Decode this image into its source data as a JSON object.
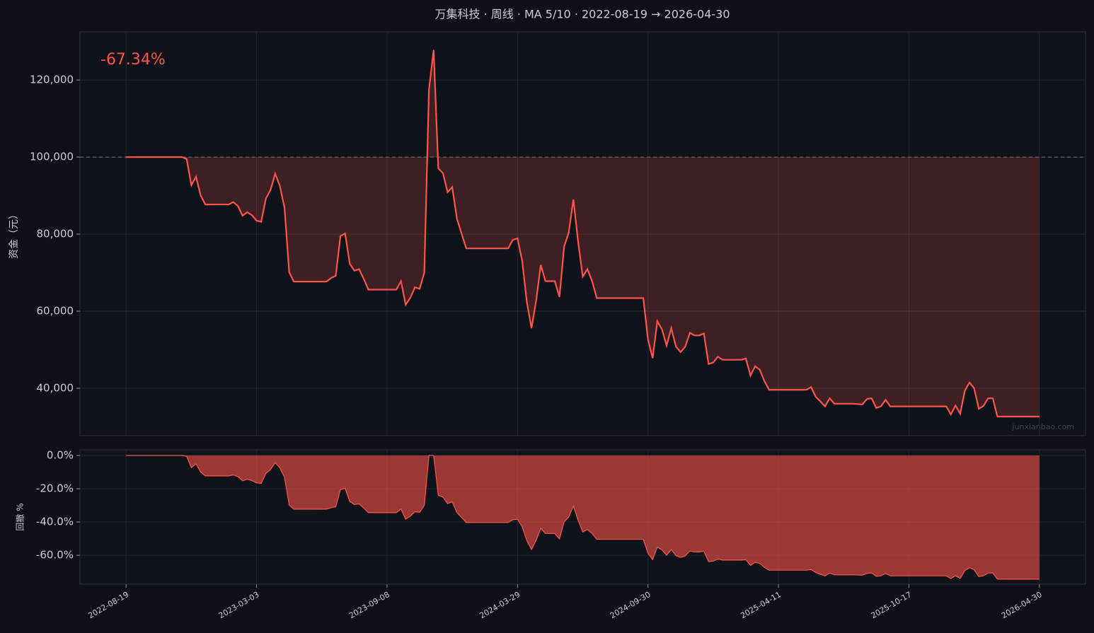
{
  "chart_data": [
    {
      "type": "line",
      "title": "万集科技 · 周线 · MA 5/10 · 2022-08-19 → 2026-04-30",
      "ylabel": "资金（元）",
      "annotation": "-67.34%",
      "watermark": "junxianbao.com",
      "color": "#ff5549",
      "baseline": 100000,
      "grid": true,
      "xlim": [
        -9.9,
        205.9
      ],
      "ylim": [
        27700,
        132500
      ],
      "yticks": [
        {
          "value": 40000,
          "label": "40,000"
        },
        {
          "value": 60000,
          "label": "60,000"
        },
        {
          "value": 80000,
          "label": "80,000"
        },
        {
          "value": 100000,
          "label": "100,000"
        },
        {
          "value": 120000,
          "label": "120,000"
        }
      ],
      "x": [
        0,
        12,
        13,
        14,
        15,
        16,
        17,
        22,
        23,
        24,
        25,
        26,
        27,
        28,
        29,
        30,
        31,
        32,
        33,
        34,
        35,
        36,
        43,
        44,
        45,
        46,
        47,
        48,
        49,
        50,
        51,
        52,
        58,
        59,
        60,
        61,
        62,
        63,
        64,
        65,
        66,
        67,
        68,
        69,
        70,
        71,
        73,
        82,
        83,
        84,
        85,
        86,
        87,
        88,
        89,
        90,
        92,
        93,
        94,
        95,
        96,
        97,
        98,
        99,
        100,
        101,
        111,
        112,
        113,
        114,
        115,
        116,
        117,
        118,
        119,
        120,
        121,
        122,
        123,
        124,
        125,
        126,
        127,
        128,
        132,
        133,
        134,
        135,
        136,
        137,
        138,
        146,
        147,
        148,
        149,
        150,
        151,
        152,
        156,
        158,
        159,
        160,
        161,
        162,
        163,
        164,
        176,
        177,
        178,
        179,
        180,
        181,
        182,
        183,
        184,
        185,
        186,
        187,
        196
      ],
      "values": [
        100000,
        100000,
        99500,
        92700,
        94900,
        90100,
        87700,
        87700,
        88300,
        87300,
        84800,
        85700,
        84900,
        83500,
        83200,
        89200,
        91500,
        95700,
        92500,
        86800,
        70100,
        67700,
        67700,
        68600,
        69200,
        79500,
        80200,
        72300,
        70500,
        70900,
        68400,
        65600,
        65600,
        67800,
        61700,
        63500,
        66200,
        65800,
        70000,
        117500,
        127800,
        97100,
        95800,
        90900,
        92200,
        84000,
        76300,
        76300,
        78500,
        78900,
        73100,
        62400,
        55600,
        62800,
        72000,
        67800,
        67800,
        63700,
        76800,
        80400,
        89000,
        78100,
        69000,
        70900,
        67800,
        63400,
        63400,
        52600,
        47800,
        57400,
        55300,
        51100,
        55600,
        50800,
        49400,
        50800,
        54400,
        53700,
        53700,
        54200,
        46300,
        46700,
        48200,
        47400,
        47400,
        47700,
        43300,
        45700,
        44800,
        41800,
        39600,
        39600,
        40300,
        37800,
        36600,
        35300,
        37400,
        36000,
        36000,
        35800,
        37200,
        37400,
        34900,
        35300,
        37000,
        35300,
        35300,
        33200,
        35500,
        33400,
        39400,
        41500,
        40000,
        34700,
        35400,
        37400,
        37400,
        32660,
        32660
      ]
    },
    {
      "type": "area",
      "ylabel": "回撤 %",
      "color": "#ff5549",
      "grid": true,
      "xlim": [
        -9.9,
        205.9
      ],
      "ylim": [
        -77.4,
        3.4
      ],
      "yticks": [
        {
          "value": -60,
          "label": "-60.0%"
        },
        {
          "value": -40,
          "label": "-40.0%"
        },
        {
          "value": -20,
          "label": "-20.0%"
        },
        {
          "value": 0,
          "label": "0.0%"
        }
      ],
      "xticks": [
        {
          "value": 0,
          "label": "2022-08-19"
        },
        {
          "value": 28,
          "label": "2023-03-03"
        },
        {
          "value": 56,
          "label": "2023-09-08"
        },
        {
          "value": 84,
          "label": "2024-03-29"
        },
        {
          "value": 112,
          "label": "2024-09-30"
        },
        {
          "value": 140,
          "label": "2025-04-11"
        },
        {
          "value": 168,
          "label": "2025-10-17"
        },
        {
          "value": 196,
          "label": "2026-04-30"
        }
      ],
      "x": [
        0,
        12,
        13,
        14,
        15,
        16,
        17,
        22,
        23,
        24,
        25,
        26,
        27,
        28,
        29,
        30,
        31,
        32,
        33,
        34,
        35,
        36,
        43,
        44,
        45,
        46,
        47,
        48,
        49,
        50,
        51,
        52,
        58,
        59,
        60,
        61,
        62,
        63,
        64,
        65,
        66,
        67,
        68,
        69,
        70,
        71,
        73,
        82,
        83,
        84,
        85,
        86,
        87,
        88,
        89,
        90,
        92,
        93,
        94,
        95,
        96,
        97,
        98,
        99,
        100,
        101,
        111,
        112,
        113,
        114,
        115,
        116,
        117,
        118,
        119,
        120,
        121,
        122,
        123,
        124,
        125,
        126,
        127,
        128,
        132,
        133,
        134,
        135,
        136,
        137,
        138,
        146,
        147,
        148,
        149,
        150,
        151,
        152,
        156,
        158,
        159,
        160,
        161,
        162,
        163,
        164,
        176,
        177,
        178,
        179,
        180,
        181,
        182,
        183,
        184,
        185,
        186,
        187,
        196
      ],
      "values": [
        0,
        0,
        -0.5,
        -7.3,
        -5.1,
        -9.9,
        -12.3,
        -12.3,
        -11.7,
        -12.7,
        -15.2,
        -14.3,
        -15.1,
        -16.5,
        -16.8,
        -10.8,
        -8.5,
        -4.3,
        -7.5,
        -13.2,
        -29.9,
        -32.3,
        -32.3,
        -31.4,
        -30.8,
        -20.5,
        -19.8,
        -27.7,
        -29.5,
        -29.1,
        -31.6,
        -34.4,
        -34.4,
        -32.2,
        -38.3,
        -36.5,
        -33.8,
        -34.2,
        -30,
        0,
        0,
        -24,
        -25,
        -28.9,
        -27.9,
        -34.3,
        -40.3,
        -40.3,
        -38.6,
        -38.3,
        -42.8,
        -51.2,
        -56.5,
        -50.9,
        -43.7,
        -46.9,
        -46.9,
        -50.2,
        -39.9,
        -37.1,
        -30.4,
        -38.9,
        -46,
        -44.5,
        -46.9,
        -50.4,
        -50.4,
        -58.8,
        -62.6,
        -55.1,
        -56.7,
        -60,
        -56.5,
        -60.3,
        -61.3,
        -60.3,
        -57.4,
        -58,
        -58,
        -57.6,
        -63.8,
        -63.5,
        -62.3,
        -62.9,
        -62.9,
        -62.7,
        -66.1,
        -64.2,
        -64.9,
        -67.3,
        -69,
        -69,
        -68.5,
        -70.4,
        -71.4,
        -72.4,
        -70.7,
        -71.8,
        -71.8,
        -72,
        -70.9,
        -70.7,
        -72.7,
        -72.4,
        -71,
        -72.4,
        -72.4,
        -74,
        -72.2,
        -73.9,
        -69.2,
        -67.5,
        -68.7,
        -72.8,
        -72.3,
        -70.7,
        -70.7,
        -74.4,
        -74.4
      ]
    }
  ]
}
